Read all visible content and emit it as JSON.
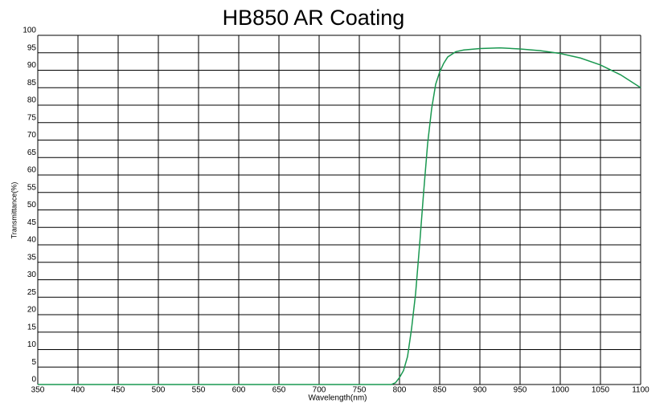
{
  "chart_data": {
    "type": "line",
    "title": "HB850 AR Coating",
    "x_label": "Wavelength(nm)",
    "y_label": "Transmittance(%)",
    "x": [
      350,
      400,
      500,
      600,
      700,
      750,
      780,
      790,
      795,
      800,
      805,
      810,
      815,
      820,
      825,
      830,
      835,
      840,
      845,
      850,
      855,
      860,
      870,
      880,
      900,
      925,
      950,
      975,
      1000,
      1025,
      1050,
      1075,
      1100
    ],
    "series": [
      {
        "name": "HB850 AR Coating",
        "color": "#1a9850",
        "values": [
          0,
          0,
          0,
          0,
          0,
          0,
          0,
          0,
          0.5,
          2,
          4,
          8,
          16,
          26,
          40,
          55,
          69,
          79,
          86,
          89.5,
          92,
          93.8,
          95.3,
          95.8,
          96.2,
          96.4,
          96.1,
          95.6,
          94.8,
          93.5,
          91.5,
          88.7,
          85
        ]
      }
    ],
    "xlim": [
      350,
      1100
    ],
    "xticks": [
      350,
      400,
      450,
      500,
      550,
      600,
      650,
      700,
      750,
      800,
      850,
      900,
      950,
      1000,
      1050,
      1100
    ],
    "ylim": [
      0,
      100
    ],
    "yticks": [
      0,
      5,
      10,
      15,
      20,
      25,
      30,
      35,
      40,
      45,
      50,
      55,
      60,
      65,
      70,
      75,
      80,
      85,
      90,
      95,
      100
    ],
    "grid": true
  }
}
